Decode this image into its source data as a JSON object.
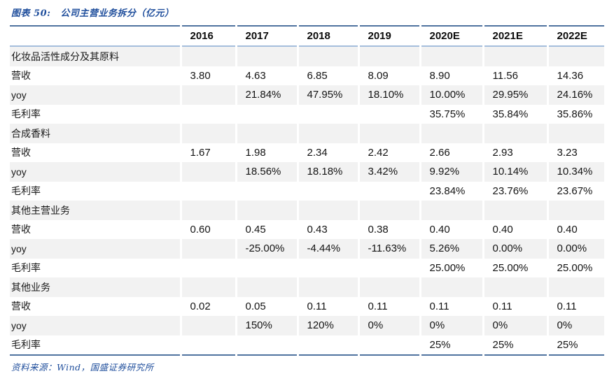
{
  "figure": {
    "label": "图表 50:",
    "title": "公司主营业务拆分（亿元）",
    "source": "资料来源：Wind，国盛证券研究所"
  },
  "chart_data": {
    "type": "table",
    "title": "公司主营业务拆分（亿元）",
    "unit": "亿元",
    "columns": [
      "2016",
      "2017",
      "2018",
      "2019",
      "2020E",
      "2021E",
      "2022E"
    ],
    "sections": [
      {
        "name": "化妆品活性成分及其原料",
        "rows": [
          {
            "label": "营收",
            "values": [
              "3.80",
              "4.63",
              "6.85",
              "8.09",
              "8.90",
              "11.56",
              "14.36"
            ]
          },
          {
            "label": "yoy",
            "values": [
              "",
              "21.84%",
              "47.95%",
              "18.10%",
              "10.00%",
              "29.95%",
              "24.16%"
            ]
          },
          {
            "label": "毛利率",
            "values": [
              "",
              "",
              "",
              "",
              "35.75%",
              "35.84%",
              "35.86%"
            ]
          }
        ]
      },
      {
        "name": "合成香料",
        "rows": [
          {
            "label": "营收",
            "values": [
              "1.67",
              "1.98",
              "2.34",
              "2.42",
              "2.66",
              "2.93",
              "3.23"
            ]
          },
          {
            "label": "yoy",
            "values": [
              "",
              "18.56%",
              "18.18%",
              "3.42%",
              "9.92%",
              "10.14%",
              "10.34%"
            ]
          },
          {
            "label": "毛利率",
            "values": [
              "",
              "",
              "",
              "",
              "23.84%",
              "23.76%",
              "23.67%"
            ]
          }
        ]
      },
      {
        "name": "其他主营业务",
        "rows": [
          {
            "label": "营收",
            "values": [
              "0.60",
              "0.45",
              "0.43",
              "0.38",
              "0.40",
              "0.40",
              "0.40"
            ]
          },
          {
            "label": "yoy",
            "values": [
              "",
              "-25.00%",
              "-4.44%",
              "-11.63%",
              "5.26%",
              "0.00%",
              "0.00%"
            ]
          },
          {
            "label": "毛利率",
            "values": [
              "",
              "",
              "",
              "",
              "25.00%",
              "25.00%",
              "25.00%"
            ]
          }
        ]
      },
      {
        "name": "其他业务",
        "rows": [
          {
            "label": "营收",
            "values": [
              "0.02",
              "0.05",
              "0.11",
              "0.11",
              "0.11",
              "0.11",
              "0.11"
            ]
          },
          {
            "label": "yoy",
            "values": [
              "",
              "150%",
              "120%",
              "0%",
              "0%",
              "0%",
              "0%"
            ]
          },
          {
            "label": "毛利率",
            "values": [
              "",
              "",
              "",
              "",
              "25%",
              "25%",
              "25%"
            ]
          }
        ]
      }
    ],
    "source": "资料来源：Wind，国盛证券研究所"
  },
  "colors": {
    "accent_blue": "#1F4E9C",
    "rule_dark_blue": "#4F739F",
    "rule_light_blue": "#A5BEDC",
    "row_stripe_gray": "#F2F2F2",
    "text_black": "#141414"
  }
}
